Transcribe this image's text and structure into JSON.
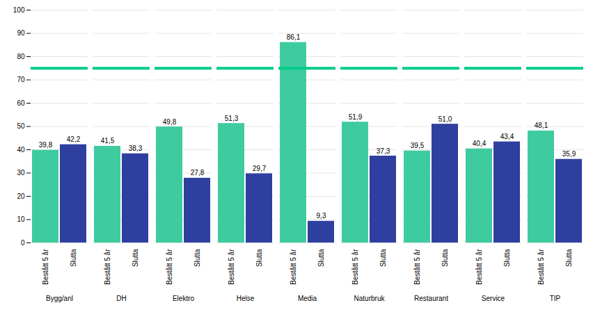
{
  "chart_data": {
    "type": "bar",
    "categories": [
      "Bygg/anl",
      "DH",
      "Elektro",
      "Helse",
      "Media",
      "Naturbruk",
      "Restaurant",
      "Service",
      "TIP"
    ],
    "series": [
      {
        "name": "Bestått 5 år",
        "color": "#3ECBA0",
        "values": [
          39.8,
          41.5,
          49.8,
          51.3,
          86.1,
          51.9,
          39.5,
          40.4,
          48.1
        ],
        "value_labels": [
          "39,8",
          "41,5",
          "49,8",
          "51,3",
          "86,1",
          "51,9",
          "39,5",
          "40,4",
          "48,1"
        ]
      },
      {
        "name": "Slutta",
        "color": "#2E3FA0",
        "values": [
          42.2,
          38.3,
          27.8,
          29.7,
          9.3,
          37.3,
          51.0,
          43.4,
          35.9
        ],
        "value_labels": [
          "42,2",
          "38,3",
          "27,8",
          "29,7",
          "9,3",
          "37,3",
          "51,0",
          "43,4",
          "35,9"
        ]
      }
    ],
    "reference_line": {
      "y": 75,
      "color": "#00CC88"
    },
    "ylim": [
      0,
      100
    ],
    "yticks": [
      0,
      10,
      20,
      30,
      40,
      50,
      60,
      70,
      80,
      90,
      100
    ],
    "grid": true,
    "data_labels": true
  }
}
